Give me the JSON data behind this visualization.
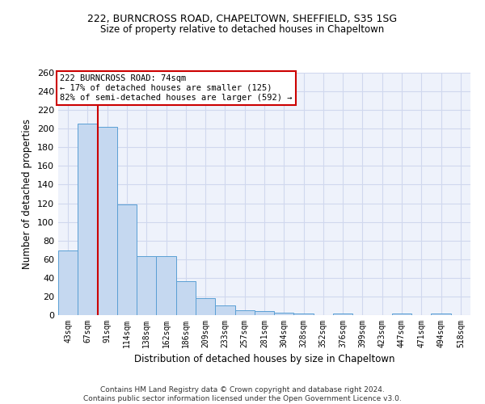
{
  "title1": "222, BURNCROSS ROAD, CHAPELTOWN, SHEFFIELD, S35 1SG",
  "title2": "Size of property relative to detached houses in Chapeltown",
  "xlabel": "Distribution of detached houses by size in Chapeltown",
  "ylabel": "Number of detached properties",
  "categories": [
    "43sqm",
    "67sqm",
    "91sqm",
    "114sqm",
    "138sqm",
    "162sqm",
    "186sqm",
    "209sqm",
    "233sqm",
    "257sqm",
    "281sqm",
    "304sqm",
    "328sqm",
    "352sqm",
    "376sqm",
    "399sqm",
    "423sqm",
    "447sqm",
    "471sqm",
    "494sqm",
    "518sqm"
  ],
  "values": [
    69,
    205,
    202,
    119,
    63,
    63,
    36,
    18,
    10,
    5,
    4,
    3,
    2,
    0,
    2,
    0,
    0,
    2,
    0,
    2,
    0
  ],
  "bar_color": "#c5d8f0",
  "bar_edge_color": "#5a9fd4",
  "background_color": "#eef2fb",
  "grid_color": "#d0d8ee",
  "vline_color": "#cc0000",
  "annotation_text": "222 BURNCROSS ROAD: 74sqm\n← 17% of detached houses are smaller (125)\n82% of semi-detached houses are larger (592) →",
  "annotation_box_color": "#cc0000",
  "annotation_text_color": "#000000",
  "footer": "Contains HM Land Registry data © Crown copyright and database right 2024.\nContains public sector information licensed under the Open Government Licence v3.0.",
  "ylim": [
    0,
    260
  ],
  "yticks": [
    0,
    20,
    40,
    60,
    80,
    100,
    120,
    140,
    160,
    180,
    200,
    220,
    240,
    260
  ]
}
